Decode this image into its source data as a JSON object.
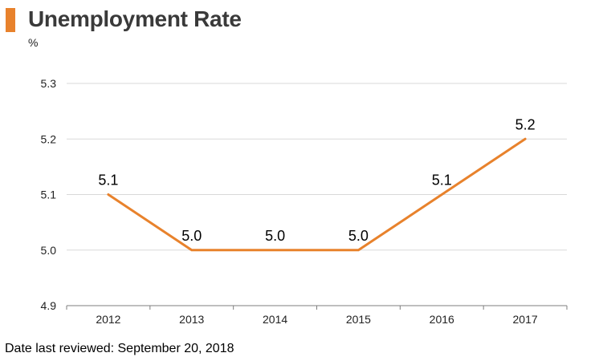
{
  "title": "Unemployment Rate",
  "unit": "%",
  "footer": "Date last reviewed: September 20, 2018",
  "colors": {
    "accent": "#e8822c",
    "grid": "#d9d9d9",
    "axis": "#7f7f7f"
  },
  "chart_data": {
    "type": "line",
    "title": "Unemployment Rate",
    "ylabel": "%",
    "categories": [
      "2012",
      "2013",
      "2014",
      "2015",
      "2016",
      "2017"
    ],
    "values": [
      5.1,
      5.0,
      5.0,
      5.0,
      5.1,
      5.2
    ],
    "data_labels": [
      "5.1",
      "5.0",
      "5.0",
      "5.0",
      "5.1",
      "5.2"
    ],
    "yticks": [
      "4.9",
      "5.0",
      "5.1",
      "5.2",
      "5.3"
    ],
    "ylim": [
      4.9,
      5.3
    ],
    "grid": true,
    "legend": false
  }
}
